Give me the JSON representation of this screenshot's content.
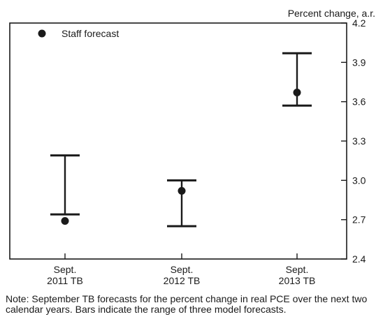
{
  "chart_data": {
    "type": "scatter",
    "ylabel": "Percent change, a.r.",
    "ylim": [
      2.4,
      4.2
    ],
    "yticks": [
      2.4,
      2.7,
      3.0,
      3.3,
      3.6,
      3.9,
      4.2
    ],
    "ytick_labels": [
      "2.4",
      "2.7",
      "3.0",
      "3.3",
      "3.6",
      "3.9",
      "4.2"
    ],
    "categories": [
      [
        "Sept.",
        "2011 TB"
      ],
      [
        "Sept.",
        "2012 TB"
      ],
      [
        "Sept.",
        "2013 TB"
      ]
    ],
    "series": [
      {
        "name": "Staff forecast",
        "values": [
          2.69,
          2.92,
          3.67
        ]
      }
    ],
    "ranges": [
      {
        "low": 2.74,
        "high": 3.19
      },
      {
        "low": 2.65,
        "high": 3.0
      },
      {
        "low": 3.57,
        "high": 3.97
      }
    ],
    "legend_position": "top-left",
    "grid": false,
    "color": "#1a1a1a"
  },
  "note": "Note: September TB forecasts for the percent change in real PCE over the next two calendar years. Bars indicate the range of three model forecasts."
}
